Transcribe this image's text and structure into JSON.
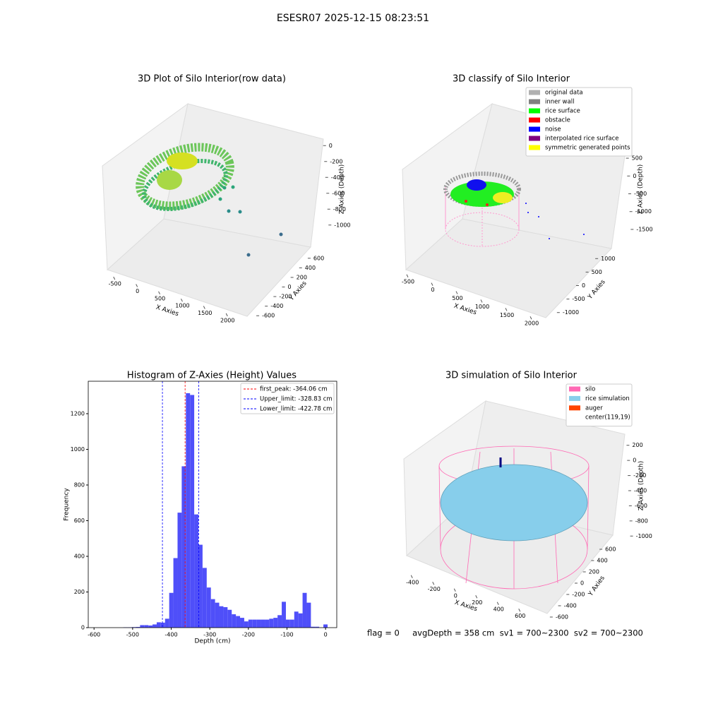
{
  "title": "ESESR07 2025-12-15 08:23:51",
  "chart_data": [
    {
      "type": "scatter3d",
      "title": "3D Plot of Silo Interior(row data)",
      "xlabel": "X Axies",
      "ylabel": "Y Axies",
      "zlabel": "Z Axies (Depth)",
      "xlim": [
        -700,
        2200
      ],
      "xticks": [
        -500,
        0,
        500,
        1000,
        1500,
        2000
      ],
      "ylim": [
        -700,
        700
      ],
      "yticks": [
        -600,
        -400,
        -200,
        0,
        200,
        400,
        600
      ],
      "zlim": [
        -1100,
        100
      ],
      "zticks": [
        -1000,
        -800,
        -600,
        -400,
        -200,
        0
      ]
    },
    {
      "type": "scatter3d",
      "title": "3D classify of Silo Interior",
      "xlabel": "X Axies",
      "ylabel": "Y Axies",
      "zlabel": "Z Axies (Depth)",
      "xlim": [
        -700,
        2200
      ],
      "xticks": [
        -500,
        0,
        500,
        1000,
        1500,
        2000
      ],
      "ylim": [
        -1400,
        1400
      ],
      "yticks": [
        -1000,
        -500,
        0,
        500,
        1000
      ],
      "zlim": [
        -1700,
        700
      ],
      "zticks": [
        -1500,
        -1000,
        -500,
        0,
        500
      ],
      "legend": "upper right",
      "series": [
        {
          "name": "original data",
          "color": "#b0b0b0"
        },
        {
          "name": "inner wall",
          "color": "#808080"
        },
        {
          "name": "rice surface",
          "color": "#00ff00"
        },
        {
          "name": "obstacle",
          "color": "#ff0000"
        },
        {
          "name": "noise",
          "color": "#0000ff"
        },
        {
          "name": "interpolated rice surface",
          "color": "#800080"
        },
        {
          "name": "symmetric generated points",
          "color": "#ffff00"
        }
      ]
    },
    {
      "type": "histogram",
      "title": "Histogram of Z-Axies (Height) Values",
      "xlabel": "Depth (cm)",
      "ylabel": "Frequency",
      "color": "#4f4ff9",
      "xlim": [
        -615,
        29
      ],
      "xticks": [
        -600,
        -500,
        -400,
        -300,
        -200,
        -100,
        0
      ],
      "ylim": [
        0,
        1382
      ],
      "yticks": [
        0,
        200,
        400,
        600,
        800,
        1000,
        1200
      ],
      "bins": [
        -524,
        -513.2,
        -502.4,
        -491.6,
        -480.8,
        -470,
        -459.2,
        -448.4,
        -437.6,
        -426.8,
        -416,
        -405.2,
        -394.4,
        -383.6,
        -372.8,
        -362,
        -351.2,
        -340.4,
        -329.6,
        -318.8,
        -308,
        -297.2,
        -286.4,
        -275.6,
        -264.8,
        -254,
        -243.2,
        -232.4,
        -221.6,
        -210.8,
        -200,
        -189.2,
        -178.4,
        -167.6,
        -156.8,
        -146,
        -135.2,
        -124.4,
        -113.6,
        -102.8,
        -92,
        -81.2,
        -70.4,
        -59.6,
        -48.8,
        -38,
        -27.2,
        -16.4,
        -5.6,
        5.2
      ],
      "values": [
        2,
        2,
        3,
        4,
        14,
        14,
        12,
        18,
        30,
        28,
        50,
        195,
        390,
        645,
        905,
        1315,
        1305,
        635,
        465,
        335,
        225,
        160,
        140,
        120,
        115,
        100,
        75,
        65,
        55,
        35,
        45,
        45,
        45,
        45,
        45,
        50,
        55,
        70,
        145,
        45,
        45,
        90,
        80,
        195,
        140,
        5,
        5,
        0,
        18
      ],
      "legend": "upper right",
      "vlines": [
        {
          "label": "first_peak: -364.06 cm",
          "value": -364.06,
          "color": "#ff0000"
        },
        {
          "label": "Upper_limit: -328.83 cm",
          "value": -328.83,
          "color": "#0000ff"
        },
        {
          "label": "Lower_limit: -422.78 cm",
          "value": -422.78,
          "color": "#0000ff"
        }
      ]
    },
    {
      "type": "surface3d",
      "title": "3D simulation of Silo Interior",
      "xlabel": "X Axies",
      "ylabel": "Y Axies",
      "zlabel": "Z Axies (Depth)",
      "xlim": [
        -500,
        700
      ],
      "xticks": [
        -400,
        -200,
        0,
        200,
        400,
        600
      ],
      "ylim": [
        -700,
        700
      ],
      "yticks": [
        -600,
        -400,
        -200,
        0,
        200,
        400,
        600
      ],
      "zlim": [
        -1100,
        300
      ],
      "zticks": [
        -1000,
        -800,
        -600,
        -400,
        -200,
        0,
        200
      ],
      "legend": "upper right",
      "series": [
        {
          "name": "silo",
          "color": "#ff69b4"
        },
        {
          "name": "rice simulation",
          "color": "#87ceeb"
        },
        {
          "name": "auger",
          "color": "#ff4500"
        },
        {
          "name": "center(119,19)",
          "color": "#ffffff"
        }
      ]
    }
  ],
  "footer": "flag = 0     avgDepth = 358 cm  sv1 = 700~2300  sv2 = 700~2300"
}
